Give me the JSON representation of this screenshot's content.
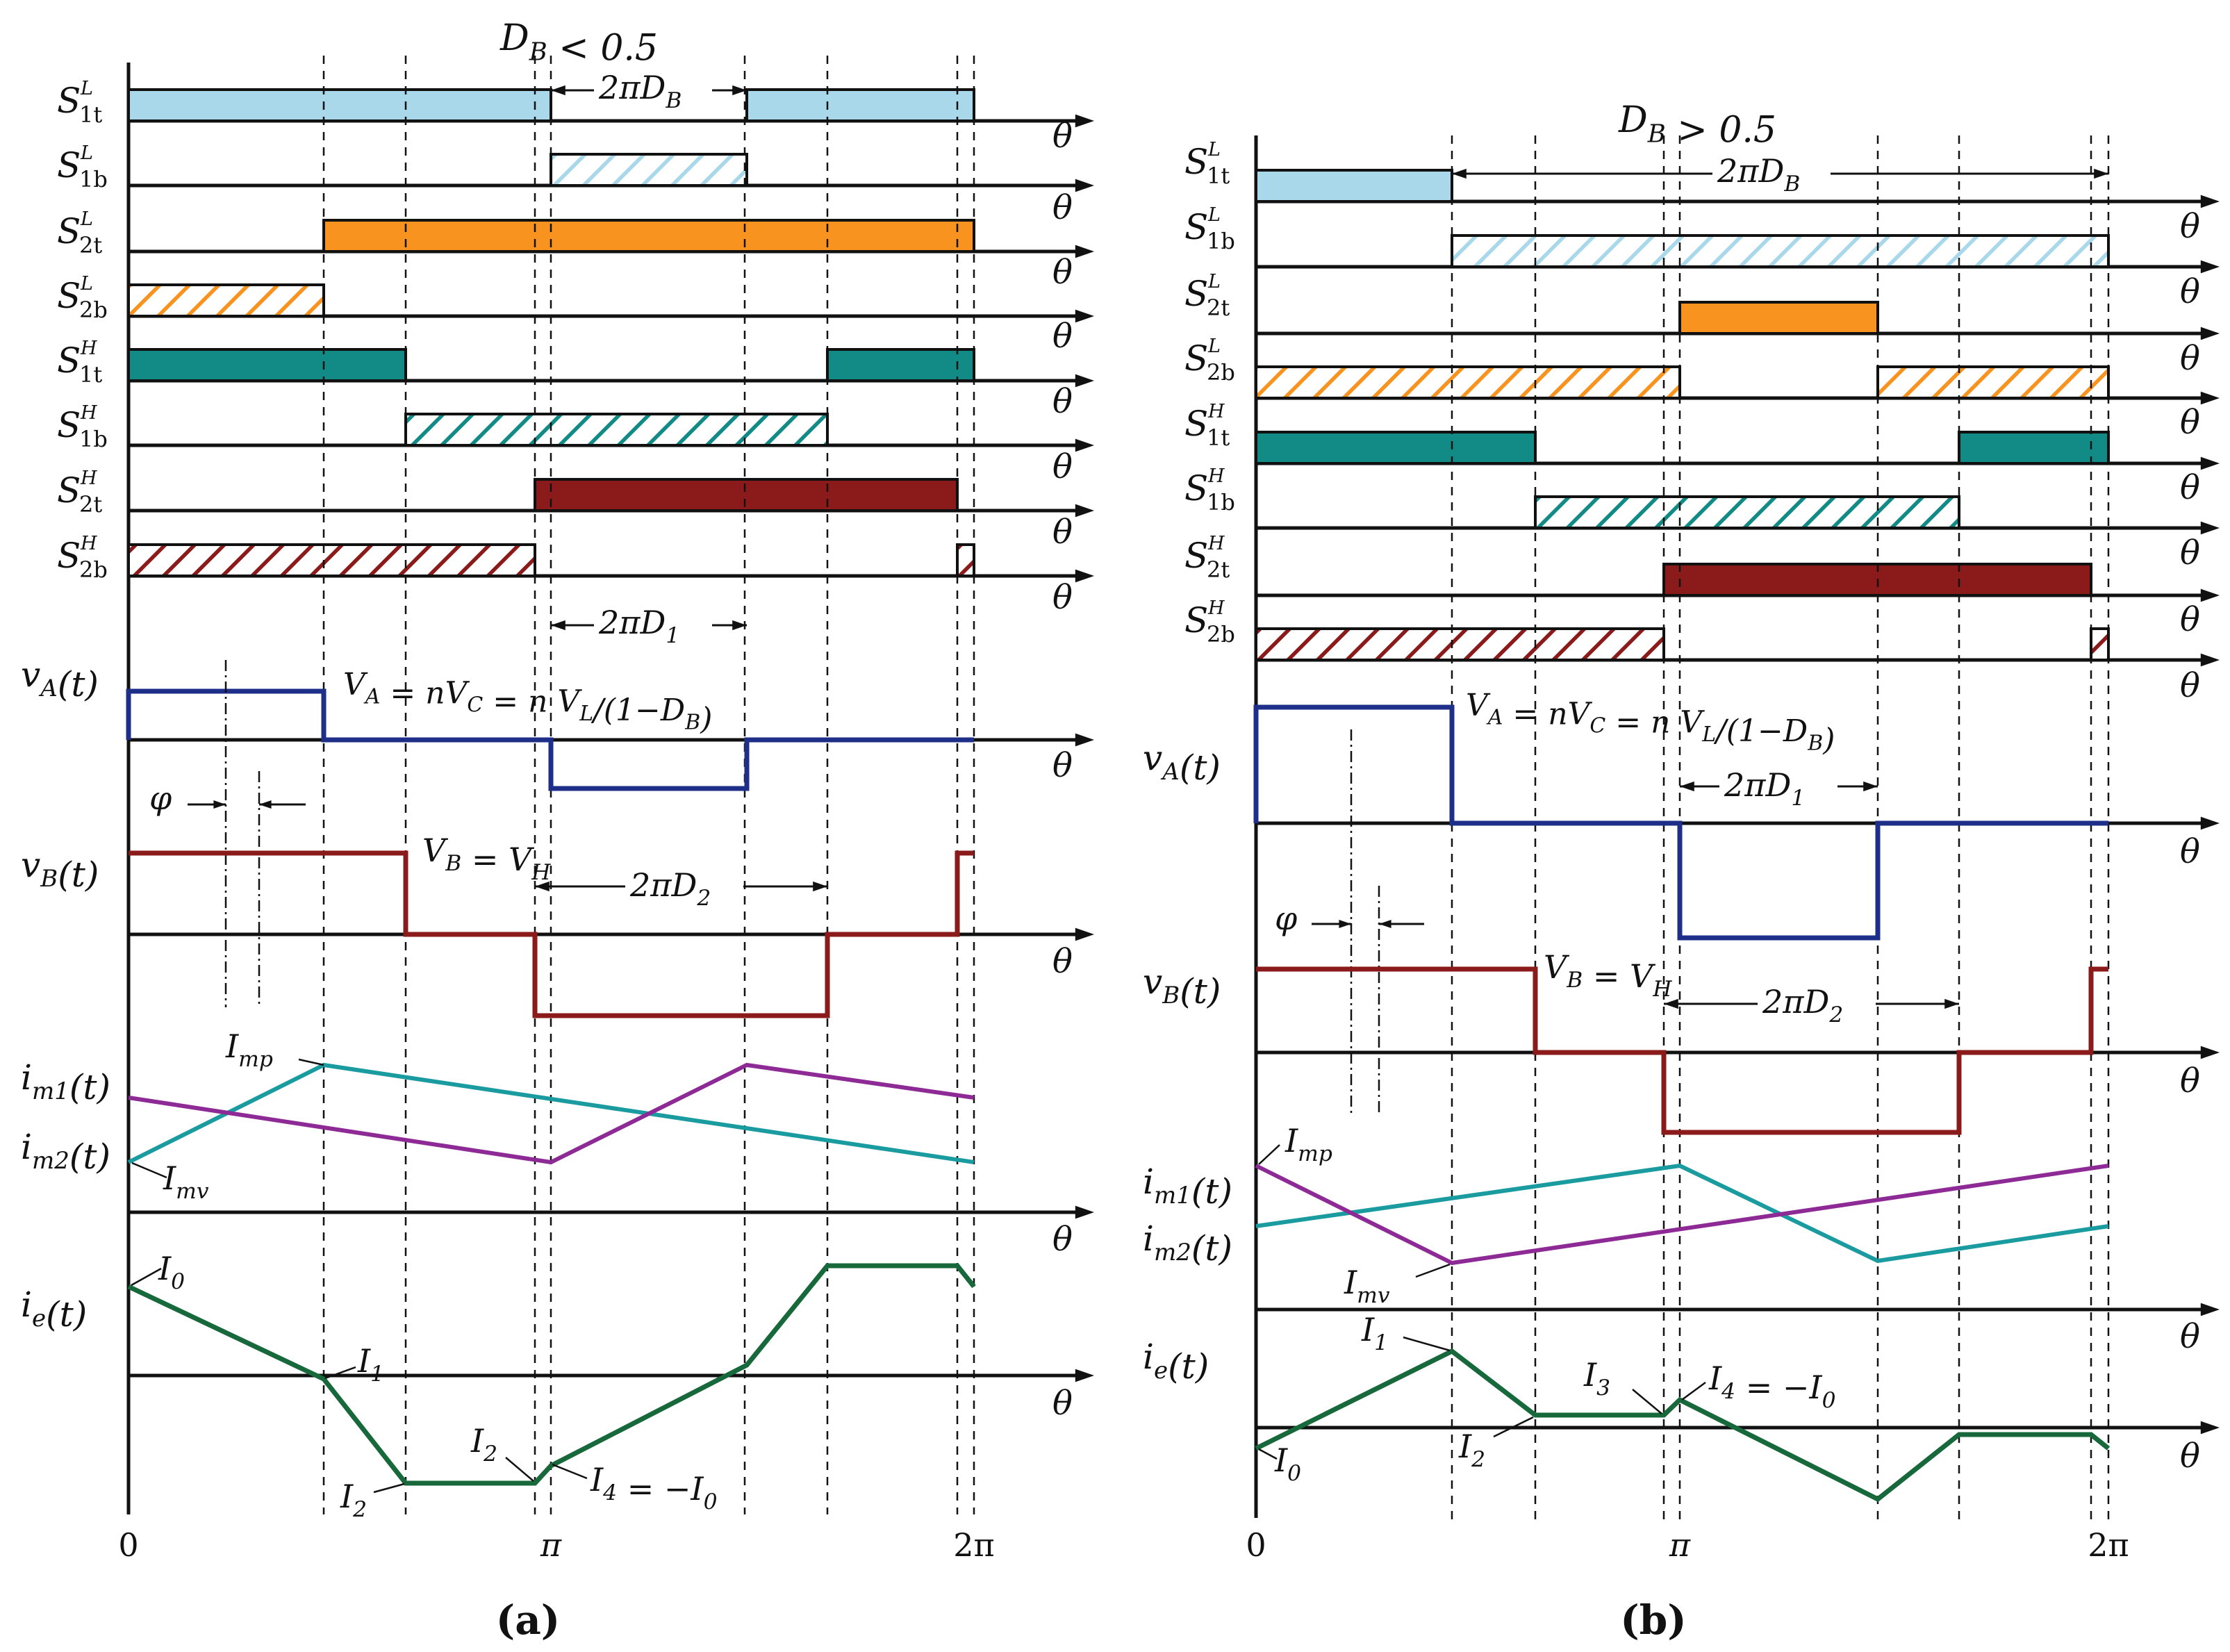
{
  "colors": {
    "s1": "#a8d8ea",
    "s2": "#f7931e",
    "sh1": "#128a86",
    "sh2": "#8b1a1a",
    "vA": "#1e2f8a",
    "vB": "#8b1a1a",
    "im_teal": "#1a9ba0",
    "im_purple": "#8e2a96",
    "ie": "#17683a",
    "axis": "#111111"
  },
  "theta": "θ",
  "panels": [
    {
      "id": "a",
      "caption": "(a)",
      "condition": "D_B < 0.5",
      "x_origin": "0",
      "x_pi": "π",
      "x_2pi": "2π",
      "switch_labels": [
        {
          "name": "S",
          "sub": "1t",
          "sup": "L"
        },
        {
          "name": "S",
          "sub": "1b",
          "sup": "L"
        },
        {
          "name": "S",
          "sub": "2t",
          "sup": "L"
        },
        {
          "name": "S",
          "sub": "2b",
          "sup": "L"
        },
        {
          "name": "S",
          "sub": "1t",
          "sup": "H"
        },
        {
          "name": "S",
          "sub": "1b",
          "sup": "H"
        },
        {
          "name": "S",
          "sub": "2t",
          "sup": "H"
        },
        {
          "name": "S",
          "sub": "2b",
          "sup": "H"
        }
      ],
      "annotations": {
        "two_pi_DB": "2πD_B",
        "two_pi_D1": "2πD_1",
        "two_pi_D2": "2πD_2",
        "phi": "φ",
        "VA_eq": "V_A = nV_C = n V_L/(1−D_B)",
        "VB_eq": "V_B = V_H"
      },
      "signal_labels": {
        "vA": "v_A(t)",
        "vB": "v_B(t)",
        "im1": "i_m1(t)",
        "im2": "i_m2(t)",
        "ie": "i_e(t)"
      },
      "current_labels": {
        "Imp": "I_mp",
        "Imv": "I_mv",
        "I0": "I_0",
        "I1": "I_1",
        "I2a": "I_2",
        "I2b": "I_2",
        "I4": "I_4 = −I_0"
      }
    },
    {
      "id": "b",
      "caption": "(b)",
      "condition": "D_B > 0.5",
      "x_origin": "0",
      "x_pi": "π",
      "x_2pi": "2π",
      "switch_labels": [
        {
          "name": "S",
          "sub": "1t",
          "sup": "L"
        },
        {
          "name": "S",
          "sub": "1b",
          "sup": "L"
        },
        {
          "name": "S",
          "sub": "2t",
          "sup": "L"
        },
        {
          "name": "S",
          "sub": "2b",
          "sup": "L"
        },
        {
          "name": "S",
          "sub": "1t",
          "sup": "H"
        },
        {
          "name": "S",
          "sub": "1b",
          "sup": "H"
        },
        {
          "name": "S",
          "sub": "2t",
          "sup": "H"
        },
        {
          "name": "S",
          "sub": "2b",
          "sup": "H"
        }
      ],
      "annotations": {
        "two_pi_DB": "2πD_B",
        "two_pi_D1": "2πD_1",
        "two_pi_D2": "2πD_2",
        "phi": "φ",
        "VA_eq": "V_A = nV_C = n V_L/(1−D_B)",
        "VB_eq": "V_B = V_H"
      },
      "signal_labels": {
        "vA": "v_A(t)",
        "vB": "v_B(t)",
        "im1": "i_m1(t)",
        "im2": "i_m2(t)",
        "ie": "i_e(t)"
      },
      "current_labels": {
        "Imp": "I_mp",
        "Imv": "I_mv",
        "I0": "I_0",
        "I1": "I_1",
        "I2": "I_2",
        "I3": "I_3",
        "I4": "I_4 = −I_0"
      }
    }
  ]
}
